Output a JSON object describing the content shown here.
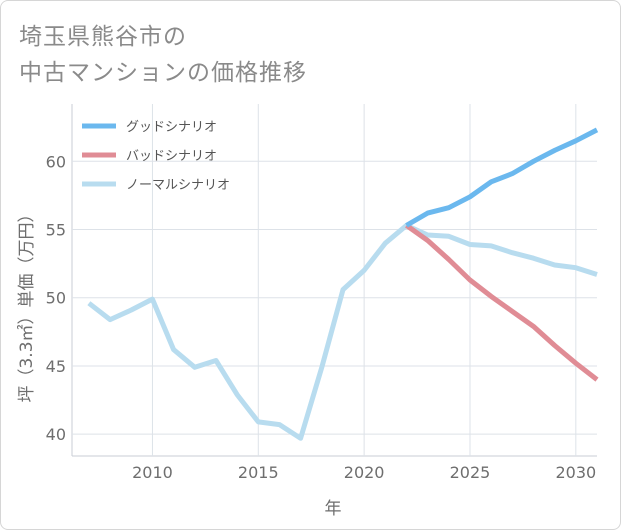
{
  "title": {
    "line1": "埼玉県熊谷市の",
    "line2": "中古マンションの価格推移"
  },
  "chart_data": {
    "type": "line",
    "xlabel": "年",
    "ylabel": "坪（3.3㎡）単価（万円）",
    "xlim": [
      2006.2,
      2031.0
    ],
    "ylim": [
      38.4,
      64.2
    ],
    "xticks": [
      2010,
      2015,
      2020,
      2025,
      2030
    ],
    "yticks": [
      40,
      45,
      50,
      55,
      60
    ],
    "grid": true,
    "legend_position": "top-left",
    "series": [
      {
        "name": "グッドシナリオ",
        "color": "#6bb8ee",
        "x": [
          2022,
          2023,
          2024,
          2025,
          2026,
          2027,
          2028,
          2029,
          2030,
          2031
        ],
        "y": [
          55.3,
          56.2,
          56.6,
          57.4,
          58.5,
          59.1,
          60.0,
          60.8,
          61.5,
          62.3
        ]
      },
      {
        "name": "バッドシナリオ",
        "color": "#e08c95",
        "x": [
          2022,
          2023,
          2024,
          2025,
          2026,
          2027,
          2028,
          2029,
          2030,
          2031
        ],
        "y": [
          55.3,
          54.2,
          52.8,
          51.3,
          50.1,
          49.0,
          47.9,
          46.5,
          45.2,
          44.0
        ]
      },
      {
        "name": "ノーマルシナリオ",
        "color": "#b8dcef",
        "x": [
          2007,
          2008,
          2009,
          2010,
          2011,
          2012,
          2013,
          2014,
          2015,
          2016,
          2017,
          2018,
          2019,
          2020,
          2021,
          2022,
          2023,
          2024,
          2025,
          2026,
          2027,
          2028,
          2029,
          2030,
          2031
        ],
        "y": [
          49.6,
          48.4,
          49.1,
          49.9,
          46.2,
          44.9,
          45.4,
          42.9,
          40.9,
          40.7,
          39.7,
          44.9,
          50.6,
          52.0,
          54.0,
          55.3,
          54.6,
          54.5,
          53.9,
          53.8,
          53.3,
          52.9,
          52.4,
          52.2,
          51.7
        ]
      }
    ]
  }
}
